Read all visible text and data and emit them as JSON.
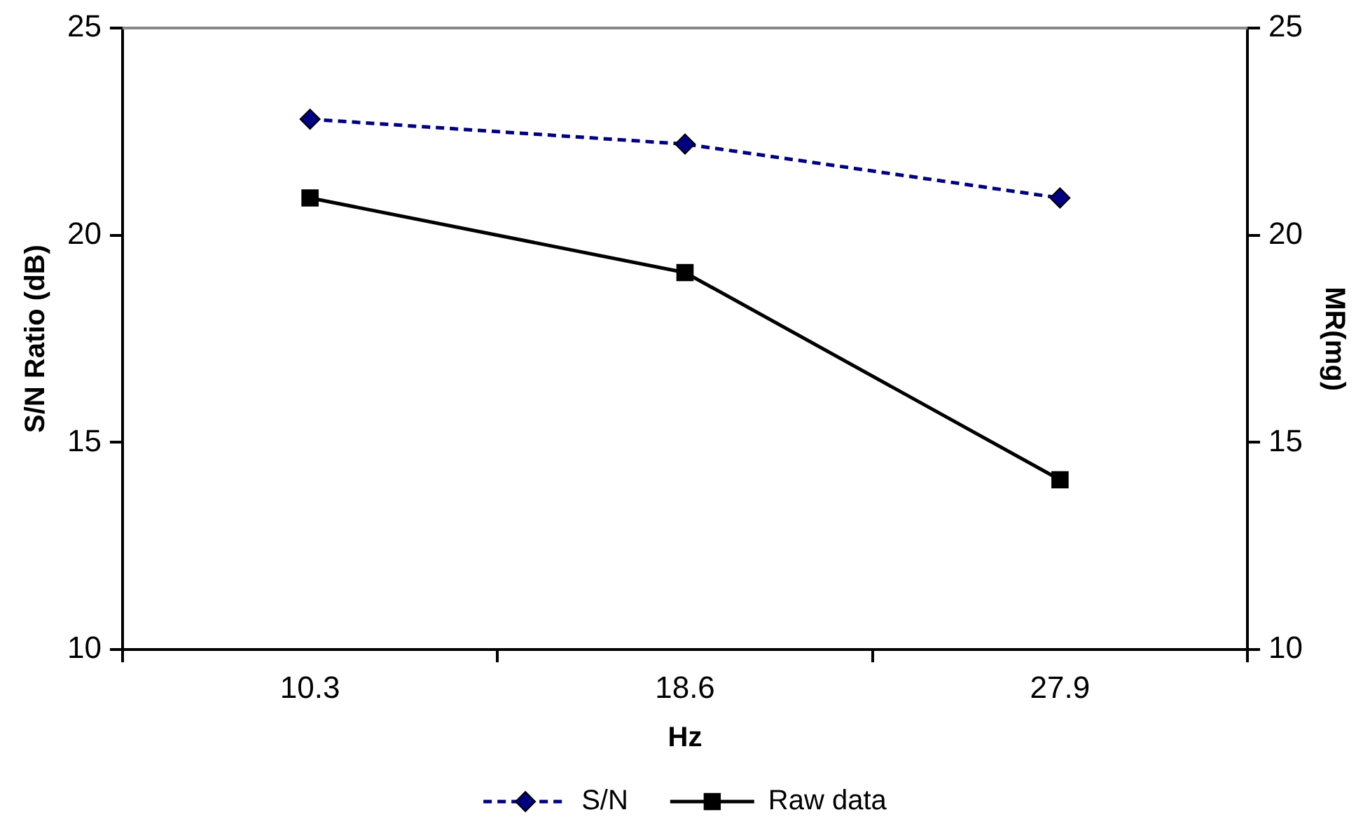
{
  "chart_data": {
    "type": "line",
    "categories": [
      "10.3",
      "18.6",
      "27.9"
    ],
    "xlabel": "Hz",
    "ylabel": "S/N Ratio (dB)",
    "y2label": "MR(mg)",
    "series": [
      {
        "name": "S/N",
        "color": "#000080",
        "values": [
          22.8,
          22.2,
          20.9
        ],
        "marker": "diamond",
        "line_style": "dashed"
      },
      {
        "name": "Raw data",
        "color": "#000000",
        "values": [
          20.9,
          19.1,
          14.1
        ],
        "marker": "square",
        "line_style": "solid",
        "axis": "y2"
      }
    ],
    "ylim": [
      10,
      25
    ],
    "yticks": [
      10,
      15,
      20,
      25
    ],
    "y2lim": [
      10,
      25
    ],
    "y2ticks": [
      10,
      15,
      20,
      25
    ],
    "grid": false,
    "legend": "bottom"
  }
}
